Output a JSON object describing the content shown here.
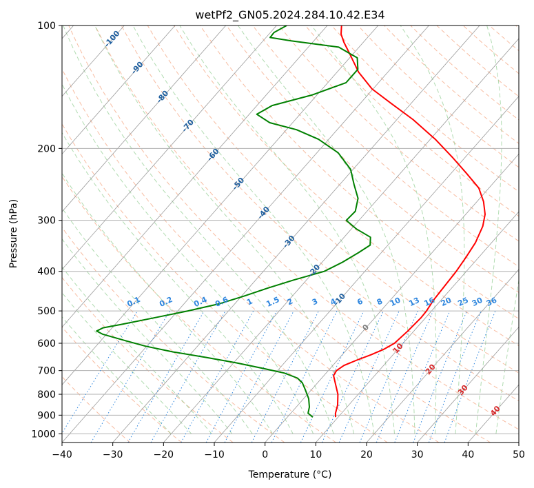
{
  "chart_data": {
    "type": "line",
    "chart_kind": "skew-t log-p thermodynamic diagram",
    "title": "wetPf2_GN05.2024.284.10.42.E34",
    "xlabel": "Temperature (°C)",
    "ylabel": "Pressure (hPa)",
    "xlim": [
      -40,
      50
    ],
    "ylim": [
      1050,
      100
    ],
    "y_scale": "log",
    "x_ticks": [
      "−40",
      "−30",
      "−20",
      "−10",
      "0",
      "10",
      "20",
      "30",
      "40",
      "50"
    ],
    "y_ticks": [
      "100",
      "200",
      "300",
      "400",
      "500",
      "600",
      "700",
      "800",
      "900",
      "1000"
    ],
    "grid": true,
    "colors": {
      "temperature": "#ff0000",
      "dewpoint": "#008000",
      "dry_adiabats": "#f4a582",
      "moist_adiabats": "#8fcc8f",
      "mixing_ratio": "#2e86de",
      "isotherms": "#9a9a9a",
      "ann_negative": "#1f5f9f",
      "ann_positive": "#d62728",
      "ann_zero": "#7f7f7f",
      "ann_mixing": "#2e86de"
    },
    "series": [
      {
        "key": "temperature",
        "color": "#ff0000",
        "points": [
          {
            "p": 910,
            "t": 9.5
          },
          {
            "p": 890,
            "t": 8.8
          },
          {
            "p": 850,
            "t": 7.8
          },
          {
            "p": 800,
            "t": 6.0
          },
          {
            "p": 760,
            "t": 4.0
          },
          {
            "p": 720,
            "t": 1.9
          },
          {
            "p": 700,
            "t": 1.6
          },
          {
            "p": 680,
            "t": 2.2
          },
          {
            "p": 660,
            "t": 3.8
          },
          {
            "p": 640,
            "t": 5.7
          },
          {
            "p": 620,
            "t": 7.3
          },
          {
            "p": 600,
            "t": 8.3
          },
          {
            "p": 560,
            "t": 8.8
          },
          {
            "p": 520,
            "t": 9.1
          },
          {
            "p": 500,
            "t": 9.0
          },
          {
            "p": 470,
            "t": 8.5
          },
          {
            "p": 440,
            "t": 8.3
          },
          {
            "p": 400,
            "t": 8.0
          },
          {
            "p": 370,
            "t": 7.5
          },
          {
            "p": 340,
            "t": 6.8
          },
          {
            "p": 310,
            "t": 5.4
          },
          {
            "p": 290,
            "t": 3.8
          },
          {
            "p": 270,
            "t": 1.3
          },
          {
            "p": 250,
            "t": -2.0
          },
          {
            "p": 230,
            "t": -7.0
          },
          {
            "p": 210,
            "t": -12.6
          },
          {
            "p": 190,
            "t": -19.0
          },
          {
            "p": 170,
            "t": -26.8
          },
          {
            "p": 155,
            "t": -34.0
          },
          {
            "p": 143,
            "t": -40.2
          },
          {
            "p": 130,
            "t": -45.8
          },
          {
            "p": 118,
            "t": -50.4
          },
          {
            "p": 110,
            "t": -53.8
          },
          {
            "p": 105,
            "t": -55.8
          },
          {
            "p": 100,
            "t": -57.2
          }
        ]
      },
      {
        "key": "dewpoint",
        "color": "#008000",
        "points": [
          {
            "p": 910,
            "t": 5.0
          },
          {
            "p": 890,
            "t": 3.4
          },
          {
            "p": 860,
            "t": 2.6
          },
          {
            "p": 820,
            "t": 1.0
          },
          {
            "p": 780,
            "t": -1.2
          },
          {
            "p": 750,
            "t": -3.0
          },
          {
            "p": 730,
            "t": -4.8
          },
          {
            "p": 710,
            "t": -8.2
          },
          {
            "p": 690,
            "t": -13.6
          },
          {
            "p": 670,
            "t": -19.5
          },
          {
            "p": 650,
            "t": -26.3
          },
          {
            "p": 630,
            "t": -33.8
          },
          {
            "p": 610,
            "t": -40.2
          },
          {
            "p": 590,
            "t": -45.5
          },
          {
            "p": 570,
            "t": -50.8
          },
          {
            "p": 560,
            "t": -52.5
          },
          {
            "p": 550,
            "t": -51.8
          },
          {
            "p": 540,
            "t": -48.9
          },
          {
            "p": 520,
            "t": -43.5
          },
          {
            "p": 500,
            "t": -38.0
          },
          {
            "p": 480,
            "t": -33.0
          },
          {
            "p": 460,
            "t": -29.5
          },
          {
            "p": 440,
            "t": -26.3
          },
          {
            "p": 420,
            "t": -22.5
          },
          {
            "p": 400,
            "t": -18.0
          },
          {
            "p": 380,
            "t": -16.0
          },
          {
            "p": 360,
            "t": -14.5
          },
          {
            "p": 345,
            "t": -13.5
          },
          {
            "p": 330,
            "t": -14.8
          },
          {
            "p": 315,
            "t": -19.0
          },
          {
            "p": 300,
            "t": -22.5
          },
          {
            "p": 285,
            "t": -22.3
          },
          {
            "p": 265,
            "t": -24.0
          },
          {
            "p": 245,
            "t": -27.2
          },
          {
            "p": 225,
            "t": -30.5
          },
          {
            "p": 205,
            "t": -35.8
          },
          {
            "p": 190,
            "t": -42.0
          },
          {
            "p": 180,
            "t": -48.0
          },
          {
            "p": 173,
            "t": -54.5
          },
          {
            "p": 165,
            "t": -58.5
          },
          {
            "p": 157,
            "t": -57.0
          },
          {
            "p": 148,
            "t": -51.0
          },
          {
            "p": 138,
            "t": -46.4
          },
          {
            "p": 128,
            "t": -46.4
          },
          {
            "p": 120,
            "t": -48.5
          },
          {
            "p": 113,
            "t": -54.0
          },
          {
            "p": 109,
            "t": -64.5
          },
          {
            "p": 107,
            "t": -69.2
          },
          {
            "p": 104,
            "t": -69.3
          },
          {
            "p": 100,
            "t": -68.0
          }
        ]
      }
    ],
    "annotations": {
      "isotherm_labels": [
        "-100",
        "-90",
        "-80",
        "-70",
        "-60",
        "-50",
        "-40",
        "-30",
        "-20",
        "-10",
        "0",
        "10",
        "20",
        "30",
        "40"
      ],
      "mixing_ratio_labels": [
        "0.1",
        "0.2",
        "0.4",
        "0.6",
        "1",
        "1.5",
        "2",
        "3",
        "4",
        "6",
        "8",
        "10",
        "13",
        "16",
        "20",
        "25",
        "30",
        "36"
      ]
    }
  }
}
